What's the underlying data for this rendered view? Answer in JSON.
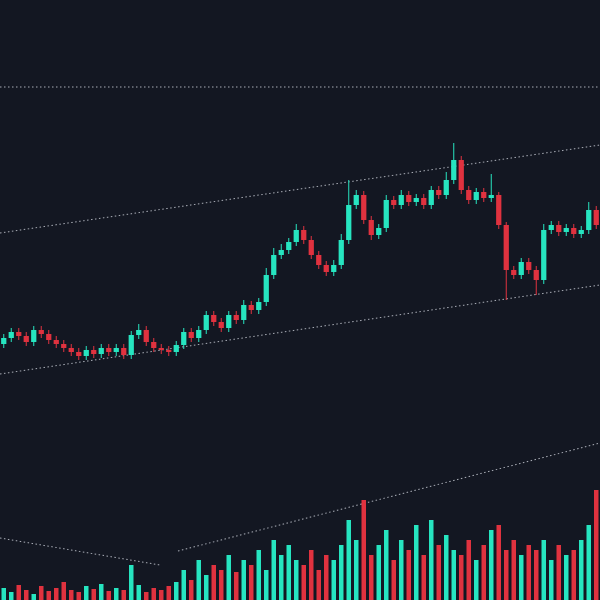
{
  "chart_data": {
    "type": "candlestick",
    "up_color": "#26e5c0",
    "down_color": "#e0323f",
    "ylim": [
      0,
      600
    ],
    "y2lim": [
      0,
      600
    ],
    "open": [
      256,
      262,
      268,
      264,
      258,
      270,
      266,
      260,
      256,
      252,
      248,
      244,
      250,
      246,
      252,
      248,
      252,
      245,
      265,
      270,
      258,
      252,
      250,
      248,
      255,
      268,
      262,
      270,
      285,
      278,
      272,
      285,
      280,
      295,
      290,
      298,
      325,
      345,
      350,
      358,
      370,
      360,
      345,
      335,
      328,
      335,
      360,
      395,
      405,
      380,
      365,
      372,
      400,
      395,
      405,
      398,
      402,
      395,
      410,
      405,
      420,
      440,
      410,
      400,
      408,
      402,
      405,
      375,
      330,
      325,
      338,
      330,
      320,
      370,
      375,
      368,
      372,
      366,
      370,
      390
    ],
    "high": [
      266,
      272,
      272,
      268,
      274,
      274,
      270,
      264,
      260,
      256,
      252,
      254,
      254,
      256,
      256,
      256,
      256,
      269,
      276,
      274,
      262,
      256,
      254,
      259,
      272,
      272,
      274,
      289,
      289,
      282,
      289,
      289,
      300,
      299,
      302,
      332,
      352,
      356,
      362,
      376,
      374,
      364,
      349,
      339,
      340,
      366,
      420,
      410,
      409,
      384,
      376,
      405,
      404,
      410,
      409,
      406,
      406,
      414,
      414,
      428,
      457,
      444,
      414,
      412,
      412,
      426,
      408,
      378,
      334,
      342,
      342,
      334,
      376,
      379,
      379,
      376,
      376,
      374,
      398,
      394
    ],
    "low": [
      252,
      258,
      260,
      254,
      254,
      262,
      256,
      252,
      248,
      244,
      240,
      240,
      242,
      242,
      244,
      244,
      241,
      241,
      261,
      254,
      248,
      246,
      244,
      244,
      251,
      258,
      258,
      266,
      274,
      268,
      268,
      276,
      276,
      286,
      286,
      294,
      321,
      341,
      346,
      354,
      356,
      341,
      331,
      324,
      324,
      331,
      356,
      391,
      376,
      360,
      361,
      368,
      391,
      391,
      394,
      394,
      391,
      391,
      401,
      401,
      416,
      406,
      396,
      396,
      398,
      398,
      371,
      300,
      321,
      321,
      326,
      305,
      316,
      366,
      364,
      364,
      362,
      362,
      366,
      371
    ],
    "close": [
      262,
      268,
      264,
      258,
      270,
      266,
      260,
      256,
      252,
      248,
      244,
      250,
      246,
      252,
      248,
      252,
      245,
      265,
      270,
      258,
      252,
      250,
      248,
      255,
      268,
      262,
      270,
      285,
      278,
      272,
      285,
      280,
      295,
      290,
      298,
      325,
      345,
      350,
      358,
      370,
      360,
      345,
      335,
      328,
      335,
      360,
      395,
      405,
      380,
      365,
      372,
      400,
      395,
      405,
      398,
      402,
      395,
      410,
      405,
      420,
      440,
      410,
      400,
      408,
      402,
      405,
      375,
      330,
      325,
      338,
      330,
      320,
      370,
      375,
      368,
      372,
      366,
      370,
      390,
      375
    ],
    "volume": {
      "axis": "y2",
      "values": [
        12,
        8,
        15,
        10,
        6,
        14,
        9,
        12,
        18,
        10,
        8,
        14,
        11,
        16,
        9,
        12,
        10,
        35,
        15,
        8,
        12,
        10,
        14,
        18,
        30,
        20,
        40,
        25,
        35,
        30,
        45,
        28,
        40,
        35,
        50,
        30,
        60,
        45,
        55,
        40,
        35,
        50,
        30,
        45,
        40,
        55,
        80,
        60,
        100,
        45,
        55,
        70,
        40,
        60,
        50,
        75,
        45,
        80,
        55,
        65,
        50,
        45,
        60,
        40,
        55,
        70,
        75,
        50,
        60,
        45,
        55,
        50,
        60,
        40,
        55,
        45,
        50,
        60,
        75,
        110
      ]
    }
  }
}
